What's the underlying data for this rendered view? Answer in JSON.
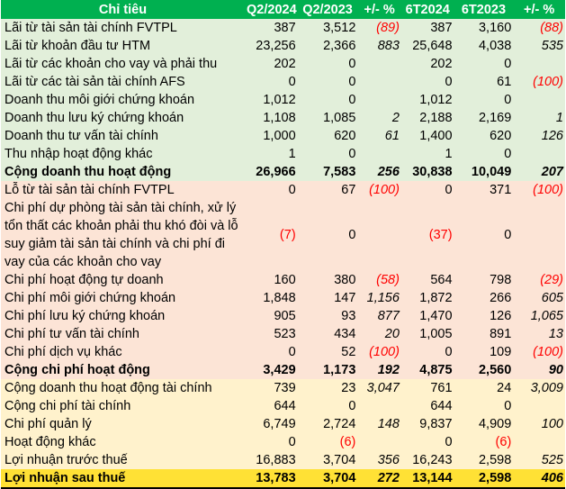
{
  "header": [
    "Chỉ tiêu",
    "Q2/2024",
    "Q2/2023",
    "+/- %",
    "6T2024",
    "6T2023",
    "+/- %"
  ],
  "colors": {
    "header": "#00B050",
    "revenue": "#E2EFDA",
    "expense": "#FCE4D6",
    "other": "#FFF2CC",
    "final": "#FFE135",
    "negative": "#FF0000"
  },
  "rows": [
    {
      "section": "rev",
      "label": "Lãi từ tài sản tài chính FVTPL",
      "v": [
        "387",
        "3,512",
        "(89)",
        "387",
        "3,160",
        "(88)"
      ]
    },
    {
      "section": "rev",
      "label": "Lãi từ khoản đầu tư HTM",
      "v": [
        "23,256",
        "2,366",
        "883",
        "25,648",
        "4,038",
        "535"
      ]
    },
    {
      "section": "rev",
      "label": "Lãi từ các khoản cho vay và phải thu",
      "v": [
        "202",
        "0",
        "",
        "202",
        "0",
        ""
      ]
    },
    {
      "section": "rev",
      "label": "Lãi từ các tài sản tài chính AFS",
      "v": [
        "0",
        "0",
        "",
        "0",
        "61",
        "(100)"
      ]
    },
    {
      "section": "rev",
      "label": "Doanh thu môi giới chứng khoán",
      "v": [
        "1,012",
        "0",
        "",
        "1,012",
        "0",
        ""
      ]
    },
    {
      "section": "rev",
      "label": "Doanh thu lưu ký chứng khoán",
      "v": [
        "1,108",
        "1,085",
        "2",
        "2,188",
        "2,169",
        "1"
      ]
    },
    {
      "section": "rev",
      "label": "Doanh thu tư vấn tài chính",
      "v": [
        "1,000",
        "620",
        "61",
        "1,400",
        "620",
        "126"
      ]
    },
    {
      "section": "rev",
      "label": "Thu nhập hoạt động khác",
      "v": [
        "1",
        "0",
        "",
        "1",
        "0",
        ""
      ]
    },
    {
      "section": "rev",
      "total": true,
      "label": "Cộng doanh thu hoạt động",
      "v": [
        "26,966",
        "7,583",
        "256",
        "30,838",
        "10,049",
        "207"
      ]
    },
    {
      "section": "exp",
      "label": "Lỗ từ tài sản tài chính FVTPL",
      "v": [
        "0",
        "67",
        "(100)",
        "0",
        "371",
        "(100)"
      ]
    },
    {
      "section": "exp",
      "label": "Chi phí dự phòng tài sản tài chính, xử lý tổn thất các khoản phải thu khó đòi và lỗ suy giảm tài sản tài chính và chi phí đi vay của các khoản cho vay",
      "v": [
        "(7)",
        "0",
        "",
        "(37)",
        "0",
        ""
      ]
    },
    {
      "section": "exp",
      "label": "Chi phí hoạt động tự doanh",
      "v": [
        "160",
        "380",
        "(58)",
        "564",
        "798",
        "(29)"
      ]
    },
    {
      "section": "exp",
      "label": "Chi phí môi giới chứng khoán",
      "v": [
        "1,848",
        "147",
        "1,156",
        "1,872",
        "266",
        "605"
      ]
    },
    {
      "section": "exp",
      "label": "Chi phí lưu ký chứng khoán",
      "v": [
        "905",
        "93",
        "877",
        "1,470",
        "126",
        "1,065"
      ]
    },
    {
      "section": "exp",
      "label": "Chi phí tư vấn tài chính",
      "v": [
        "523",
        "434",
        "20",
        "1,005",
        "891",
        "13"
      ]
    },
    {
      "section": "exp",
      "label": "Chi phí dịch vụ khác",
      "v": [
        "0",
        "52",
        "(100)",
        "0",
        "109",
        "(100)"
      ]
    },
    {
      "section": "exp",
      "total": true,
      "label": "Cộng chi phí hoạt động",
      "v": [
        "3,429",
        "1,173",
        "192",
        "4,875",
        "2,560",
        "90"
      ]
    },
    {
      "section": "oth",
      "label": "Cộng doanh thu hoạt động tài chính",
      "v": [
        "739",
        "23",
        "3,047",
        "761",
        "24",
        "3,009"
      ]
    },
    {
      "section": "oth",
      "label": "Cộng chi phí tài chính",
      "v": [
        "644",
        "0",
        "",
        "644",
        "0",
        ""
      ]
    },
    {
      "section": "oth",
      "label": "Chi phí quản lý",
      "v": [
        "6,749",
        "2,724",
        "148",
        "9,837",
        "4,909",
        "100"
      ]
    },
    {
      "section": "oth",
      "label": "Hoạt động khác",
      "v": [
        "0",
        "(6)",
        "",
        "0",
        "(6)",
        ""
      ]
    },
    {
      "section": "oth",
      "label": "Lợi nhuận trước thuế",
      "v": [
        "16,883",
        "3,704",
        "356",
        "16,243",
        "2,598",
        "525"
      ]
    },
    {
      "section": "final",
      "total": true,
      "label": "Lợi nhuận sau thuế",
      "v": [
        "13,783",
        "3,704",
        "272",
        "13,144",
        "2,598",
        "406"
      ]
    }
  ]
}
